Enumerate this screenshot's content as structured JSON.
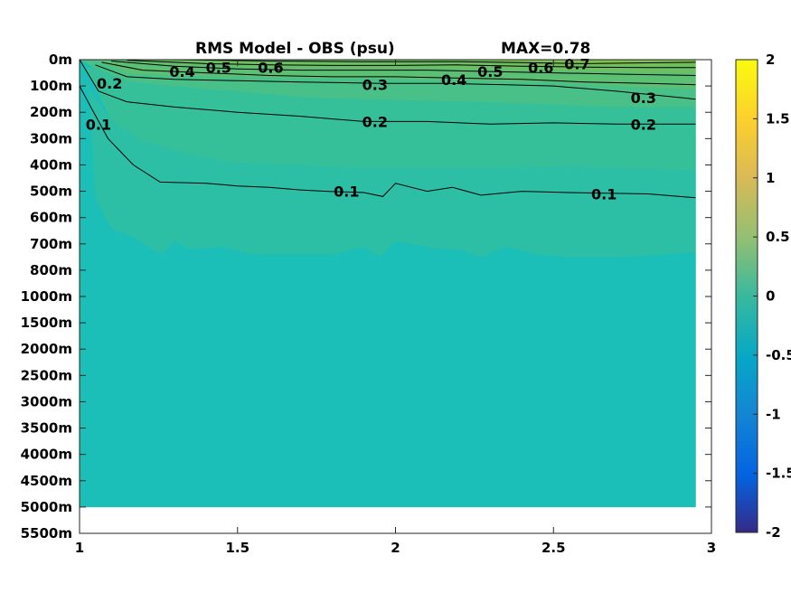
{
  "chart_data": {
    "type": "heatmap",
    "title": "RMS Model - OBS (psu)",
    "annotation": "MAX=0.78",
    "x_ticks": [
      "1",
      "1.5",
      "2",
      "2.5",
      "3"
    ],
    "x_range": [
      1,
      3
    ],
    "data_x_range": [
      1,
      2.95
    ],
    "y_ticks": [
      "0m",
      "100m",
      "200m",
      "300m",
      "400m",
      "500m",
      "600m",
      "700m",
      "800m",
      "1000m",
      "1500m",
      "2000m",
      "2500m",
      "3000m",
      "3500m",
      "4000m",
      "4500m",
      "5000m",
      "5500m"
    ],
    "y_axis_direction": "depth increasing downward",
    "colorbar": {
      "colormap": "parula",
      "range": [
        -2,
        2
      ],
      "ticks": [
        "2",
        "1.5",
        "1",
        "0.5",
        "0",
        "-0.5",
        "-1",
        "-1.5",
        "-2"
      ]
    },
    "contour_levels": [
      "0.1",
      "0.2",
      "0.3",
      "0.4",
      "0.5",
      "0.6",
      "0.7"
    ],
    "contour_labels": [
      {
        "text": "0.4",
        "x": 1.325,
        "depth_index": 0.45
      },
      {
        "text": "0.5",
        "x": 1.44,
        "depth_index": 0.3
      },
      {
        "text": "0.6",
        "x": 1.605,
        "depth_index": 0.3
      },
      {
        "text": "0.2",
        "x": 1.095,
        "depth_index": 0.9
      },
      {
        "text": "0.3",
        "x": 1.935,
        "depth_index": 0.95
      },
      {
        "text": "0.4",
        "x": 2.185,
        "depth_index": 0.75
      },
      {
        "text": "0.5",
        "x": 2.3,
        "depth_index": 0.45
      },
      {
        "text": "0.6",
        "x": 2.46,
        "depth_index": 0.3
      },
      {
        "text": "0.7",
        "x": 2.575,
        "depth_index": 0.15
      },
      {
        "text": "0.3",
        "x": 2.785,
        "depth_index": 1.45
      },
      {
        "text": "0.2",
        "x": 1.935,
        "depth_index": 2.35
      },
      {
        "text": "0.2",
        "x": 2.785,
        "depth_index": 2.45
      },
      {
        "text": "0.1",
        "x": 1.06,
        "depth_index": 2.45
      },
      {
        "text": "0.1",
        "x": 1.845,
        "depth_index": 5.0
      },
      {
        "text": "0.1",
        "x": 2.66,
        "depth_index": 5.1
      }
    ],
    "contour_lines": [
      {
        "level": 0.1,
        "points": [
          [
            1.0,
            1.0
          ],
          [
            1.04,
            1.9
          ],
          [
            1.09,
            3.0
          ],
          [
            1.17,
            4.0
          ],
          [
            1.255,
            4.65
          ],
          [
            1.4,
            4.7
          ],
          [
            1.5,
            4.8
          ],
          [
            1.6,
            4.85
          ],
          [
            1.7,
            4.95
          ],
          [
            1.78,
            5.0
          ],
          [
            1.9,
            5.05
          ],
          [
            1.96,
            5.2
          ],
          [
            2.0,
            4.7
          ],
          [
            2.1,
            5.0
          ],
          [
            2.18,
            4.85
          ],
          [
            2.27,
            5.15
          ],
          [
            2.4,
            5.0
          ],
          [
            2.55,
            5.05
          ],
          [
            2.8,
            5.1
          ],
          [
            2.95,
            5.25
          ]
        ]
      },
      {
        "level": 0.2,
        "points": [
          [
            1.0,
            0.0
          ],
          [
            1.06,
            1.2
          ],
          [
            1.15,
            1.6
          ],
          [
            1.3,
            1.8
          ],
          [
            1.5,
            2.0
          ],
          [
            1.7,
            2.15
          ],
          [
            1.9,
            2.35
          ],
          [
            2.1,
            2.35
          ],
          [
            2.3,
            2.45
          ],
          [
            2.5,
            2.4
          ],
          [
            2.7,
            2.45
          ],
          [
            2.95,
            2.45
          ]
        ]
      },
      {
        "level": 0.3,
        "points": [
          [
            1.05,
            0.2
          ],
          [
            1.15,
            0.65
          ],
          [
            1.3,
            0.75
          ],
          [
            1.5,
            0.8
          ],
          [
            1.7,
            0.85
          ],
          [
            1.95,
            0.9
          ],
          [
            2.15,
            0.9
          ],
          [
            2.35,
            0.95
          ],
          [
            2.5,
            1.0
          ],
          [
            2.7,
            1.2
          ],
          [
            2.95,
            1.5
          ]
        ]
      },
      {
        "level": 0.4,
        "points": [
          [
            1.07,
            0.1
          ],
          [
            1.2,
            0.4
          ],
          [
            1.4,
            0.5
          ],
          [
            1.6,
            0.6
          ],
          [
            1.8,
            0.65
          ],
          [
            2.0,
            0.65
          ],
          [
            2.2,
            0.7
          ],
          [
            2.4,
            0.75
          ],
          [
            2.6,
            0.85
          ],
          [
            2.8,
            0.9
          ],
          [
            2.95,
            0.95
          ]
        ]
      },
      {
        "level": 0.5,
        "points": [
          [
            1.1,
            0.05
          ],
          [
            1.3,
            0.25
          ],
          [
            1.5,
            0.35
          ],
          [
            1.7,
            0.4
          ],
          [
            1.9,
            0.4
          ],
          [
            2.1,
            0.4
          ],
          [
            2.3,
            0.45
          ],
          [
            2.5,
            0.5
          ],
          [
            2.7,
            0.55
          ],
          [
            2.95,
            0.6
          ]
        ]
      },
      {
        "level": 0.6,
        "points": [
          [
            1.15,
            0.02
          ],
          [
            1.4,
            0.15
          ],
          [
            1.6,
            0.2
          ],
          [
            1.8,
            0.22
          ],
          [
            2.0,
            0.22
          ],
          [
            2.2,
            0.2
          ],
          [
            2.4,
            0.25
          ],
          [
            2.6,
            0.28
          ],
          [
            2.8,
            0.3
          ],
          [
            2.95,
            0.3
          ]
        ]
      },
      {
        "level": 0.7,
        "points": [
          [
            1.3,
            0.0
          ],
          [
            1.6,
            0.05
          ],
          [
            1.9,
            0.08
          ],
          [
            2.2,
            0.08
          ],
          [
            2.45,
            0.12
          ],
          [
            2.6,
            0.15
          ],
          [
            2.8,
            0.12
          ],
          [
            2.95,
            0.1
          ]
        ]
      }
    ],
    "color_bands": [
      {
        "color": "#1bbfb8",
        "points": [
          [
            1.0,
            17.0
          ],
          [
            2.95,
            17.0
          ],
          [
            2.95,
            7.3
          ],
          [
            2.85,
            7.4
          ],
          [
            2.7,
            7.5
          ],
          [
            2.55,
            7.5
          ],
          [
            2.45,
            7.4
          ],
          [
            2.35,
            7.1
          ],
          [
            2.27,
            7.5
          ],
          [
            2.2,
            7.2
          ],
          [
            2.15,
            7.2
          ],
          [
            2.0,
            6.9
          ],
          [
            1.95,
            7.5
          ],
          [
            1.9,
            7.1
          ],
          [
            1.8,
            7.4
          ],
          [
            1.65,
            7.4
          ],
          [
            1.55,
            7.4
          ],
          [
            1.45,
            7.1
          ],
          [
            1.35,
            7.2
          ],
          [
            1.3,
            6.9
          ],
          [
            1.26,
            7.4
          ],
          [
            1.18,
            6.8
          ],
          [
            1.1,
            6.4
          ],
          [
            1.05,
            5.2
          ],
          [
            1.03,
            1.0
          ],
          [
            1.0,
            1.0
          ]
        ]
      },
      {
        "color": "#2cbfa6",
        "points": [
          [
            1.0,
            1.0
          ],
          [
            1.03,
            1.0
          ],
          [
            1.05,
            5.2
          ],
          [
            1.1,
            6.4
          ],
          [
            1.18,
            6.8
          ],
          [
            1.26,
            7.4
          ],
          [
            1.3,
            6.9
          ],
          [
            1.35,
            7.2
          ],
          [
            1.45,
            7.1
          ],
          [
            1.55,
            7.4
          ],
          [
            1.65,
            7.4
          ],
          [
            1.8,
            7.4
          ],
          [
            1.9,
            7.1
          ],
          [
            1.95,
            7.5
          ],
          [
            2.0,
            6.9
          ],
          [
            2.15,
            7.2
          ],
          [
            2.2,
            7.2
          ],
          [
            2.27,
            7.5
          ],
          [
            2.35,
            7.1
          ],
          [
            2.45,
            7.4
          ],
          [
            2.55,
            7.5
          ],
          [
            2.7,
            7.5
          ],
          [
            2.85,
            7.4
          ],
          [
            2.95,
            7.3
          ],
          [
            2.95,
            4.2
          ],
          [
            2.7,
            4.1
          ],
          [
            2.5,
            4.05
          ],
          [
            2.3,
            4.1
          ],
          [
            2.1,
            4.1
          ],
          [
            1.9,
            4.1
          ],
          [
            1.7,
            4.0
          ],
          [
            1.5,
            3.9
          ],
          [
            1.35,
            3.6
          ],
          [
            1.2,
            3.1
          ],
          [
            1.1,
            2.3
          ],
          [
            1.02,
            1.0
          ]
        ]
      },
      {
        "color": "#35c09a",
        "points": [
          [
            1.02,
            0.3
          ],
          [
            1.1,
            2.3
          ],
          [
            1.2,
            3.1
          ],
          [
            1.35,
            3.6
          ],
          [
            1.5,
            3.9
          ],
          [
            1.7,
            4.0
          ],
          [
            1.9,
            4.1
          ],
          [
            2.1,
            4.1
          ],
          [
            2.3,
            4.1
          ],
          [
            2.5,
            4.05
          ],
          [
            2.7,
            4.1
          ],
          [
            2.95,
            4.2
          ],
          [
            2.95,
            1.8
          ],
          [
            2.7,
            1.8
          ],
          [
            2.5,
            1.7
          ],
          [
            2.3,
            1.6
          ],
          [
            2.1,
            1.55
          ],
          [
            1.9,
            1.5
          ],
          [
            1.7,
            1.4
          ],
          [
            1.5,
            1.2
          ],
          [
            1.3,
            1.0
          ],
          [
            1.15,
            0.8
          ],
          [
            1.05,
            0.3
          ]
        ]
      },
      {
        "color": "#49c088",
        "points": [
          [
            1.05,
            0.0
          ],
          [
            1.15,
            0.5
          ],
          [
            1.3,
            0.6
          ],
          [
            1.5,
            0.65
          ],
          [
            1.7,
            0.7
          ],
          [
            1.9,
            0.7
          ],
          [
            2.1,
            0.75
          ],
          [
            2.3,
            0.8
          ],
          [
            2.5,
            0.85
          ],
          [
            2.7,
            1.0
          ],
          [
            2.95,
            1.1
          ],
          [
            2.95,
            1.8
          ],
          [
            2.7,
            1.8
          ],
          [
            2.5,
            1.7
          ],
          [
            2.3,
            1.6
          ],
          [
            2.1,
            1.55
          ],
          [
            1.9,
            1.5
          ],
          [
            1.7,
            1.4
          ],
          [
            1.5,
            1.2
          ],
          [
            1.3,
            1.0
          ],
          [
            1.15,
            0.8
          ],
          [
            1.05,
            0.3
          ],
          [
            1.0,
            0.0
          ]
        ]
      },
      {
        "color": "#5cc074",
        "points": [
          [
            1.12,
            0.0
          ],
          [
            1.3,
            0.15
          ],
          [
            1.5,
            0.25
          ],
          [
            1.7,
            0.3
          ],
          [
            1.9,
            0.3
          ],
          [
            2.1,
            0.3
          ],
          [
            2.3,
            0.35
          ],
          [
            2.5,
            0.4
          ],
          [
            2.7,
            0.45
          ],
          [
            2.95,
            0.5
          ],
          [
            2.95,
            1.1
          ],
          [
            2.7,
            1.0
          ],
          [
            2.5,
            0.85
          ],
          [
            2.3,
            0.8
          ],
          [
            2.1,
            0.75
          ],
          [
            1.9,
            0.7
          ],
          [
            1.7,
            0.7
          ],
          [
            1.5,
            0.65
          ],
          [
            1.3,
            0.6
          ],
          [
            1.15,
            0.5
          ],
          [
            1.05,
            0.0
          ]
        ]
      },
      {
        "color": "#6cbf62",
        "points": [
          [
            1.25,
            0.0
          ],
          [
            2.95,
            0.0
          ],
          [
            2.95,
            0.5
          ],
          [
            2.7,
            0.45
          ],
          [
            2.5,
            0.4
          ],
          [
            2.3,
            0.35
          ],
          [
            2.1,
            0.3
          ],
          [
            1.9,
            0.3
          ],
          [
            1.7,
            0.3
          ],
          [
            1.5,
            0.25
          ],
          [
            1.3,
            0.15
          ],
          [
            1.12,
            0.0
          ]
        ]
      },
      {
        "color": "#7fc050",
        "points": [
          [
            2.2,
            0.0
          ],
          [
            2.95,
            0.0
          ],
          [
            2.95,
            0.15
          ],
          [
            2.8,
            0.18
          ],
          [
            2.6,
            0.2
          ],
          [
            2.45,
            0.15
          ],
          [
            2.3,
            0.05
          ]
        ]
      }
    ]
  },
  "colors": {
    "base": "#1bbfb8",
    "background": "#ffffff"
  }
}
